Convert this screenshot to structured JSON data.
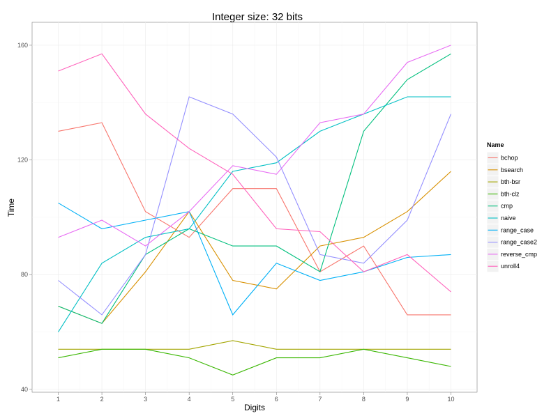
{
  "chart_data": {
    "type": "line",
    "title": "Integer size: 32 bits",
    "xlabel": "Digits",
    "ylabel": "Time",
    "x": [
      1,
      2,
      3,
      4,
      5,
      6,
      7,
      8,
      9,
      10
    ],
    "x_tick_labels": [
      "1",
      "2",
      "3",
      "4",
      "5",
      "6",
      "7",
      "8",
      "9",
      "10"
    ],
    "y_ticks": [
      40,
      80,
      120,
      160
    ],
    "y_tick_labels": [
      "40",
      "80",
      "120",
      "160"
    ],
    "xlim": [
      0.4,
      10.6
    ],
    "ylim": [
      39,
      168
    ],
    "grid": true,
    "legend": {
      "title": "Name",
      "position": "right"
    },
    "series": [
      {
        "name": "bchop",
        "color": "#F8766D",
        "values": [
          130,
          133,
          102,
          93,
          110,
          110,
          81,
          90,
          66,
          66
        ]
      },
      {
        "name": "bsearch",
        "color": "#D89000",
        "values": [
          69,
          63,
          81,
          102,
          78,
          75,
          90,
          93,
          102,
          116
        ]
      },
      {
        "name": "bth-bsr",
        "color": "#A3A500",
        "values": [
          54,
          54,
          54,
          54,
          57,
          54,
          54,
          54,
          54,
          54
        ]
      },
      {
        "name": "bth-clz",
        "color": "#39B600",
        "values": [
          51,
          54,
          54,
          51,
          45,
          51,
          51,
          54,
          51,
          48
        ]
      },
      {
        "name": "cmp",
        "color": "#00BF7D",
        "values": [
          69,
          63,
          87,
          96,
          90,
          90,
          81,
          130,
          148,
          157
        ]
      },
      {
        "name": "naive",
        "color": "#00BFC4",
        "values": [
          60,
          84,
          93,
          96,
          116,
          119,
          130,
          136,
          142,
          142
        ]
      },
      {
        "name": "range_case",
        "color": "#00B0F6",
        "values": [
          105,
          96,
          99,
          102,
          66,
          84,
          78,
          81,
          86,
          87
        ]
      },
      {
        "name": "range_case2",
        "color": "#9590FF",
        "values": [
          78,
          66,
          87,
          142,
          136,
          121,
          87,
          84,
          99,
          136
        ]
      },
      {
        "name": "reverse_cmp",
        "color": "#E76BF3",
        "values": [
          93,
          99,
          90,
          102,
          118,
          115,
          133,
          136,
          154,
          160
        ]
      },
      {
        "name": "unroll4",
        "color": "#FF62BC",
        "values": [
          151,
          157,
          136,
          124,
          115,
          96,
          95,
          81,
          87,
          74
        ]
      }
    ]
  }
}
